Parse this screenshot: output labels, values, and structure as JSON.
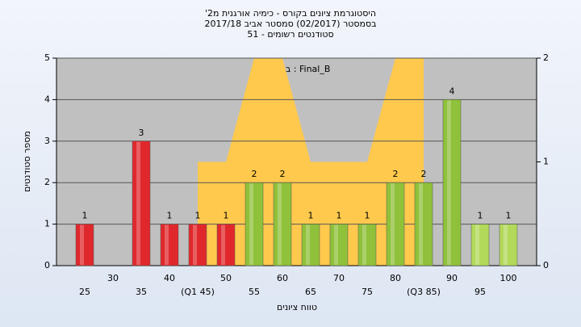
{
  "chart_data": {
    "type": "bar",
    "title": "היסטוגרמת ציונים בקורס - כימיה אורגנית מ2'",
    "subtitle": "בסמסטר (02/2017)  סמסטר אביב 2017/18",
    "subtitle2": "סטודנטים רשומים - 51",
    "annotation": "בנשימה : Final_B",
    "x_label": "טווח ציונים",
    "y_label": "מספר סטודנטים",
    "categories": [
      "25",
      "30",
      "35",
      "40",
      "(Q1 45)",
      "50",
      "55",
      "60",
      "65",
      "70",
      "75",
      "80",
      "(Q3 85)",
      "90",
      "95",
      "100"
    ],
    "series": [
      {
        "type": "bar",
        "values": [
          1,
          null,
          3,
          1,
          1,
          1,
          2,
          2,
          1,
          1,
          1,
          2,
          2,
          4,
          1,
          1
        ],
        "colors": [
          "#e0282c",
          "#e0282c",
          "#e0282c",
          "#e0282c",
          "#e0282c",
          "#e0282c",
          "#8fc13a",
          "#8fc13a",
          "#8fc13a",
          "#8fc13a",
          "#8fc13a",
          "#8fc13a",
          "#8fc13a",
          "#8fc13a",
          "#b2d95a",
          "#b2d95a"
        ]
      },
      {
        "type": "area",
        "axis": "y2",
        "color": "#ffc94d",
        "values": [
          null,
          null,
          null,
          null,
          1,
          1,
          2,
          2,
          1,
          1,
          1,
          2,
          2,
          null,
          null,
          null
        ]
      }
    ],
    "ylim": [
      0,
      5
    ],
    "yticks": [
      0,
      1,
      2,
      3,
      4,
      5
    ],
    "y2lim": [
      0,
      2
    ],
    "y2ticks": [
      0,
      1,
      2
    ],
    "grid": true
  }
}
